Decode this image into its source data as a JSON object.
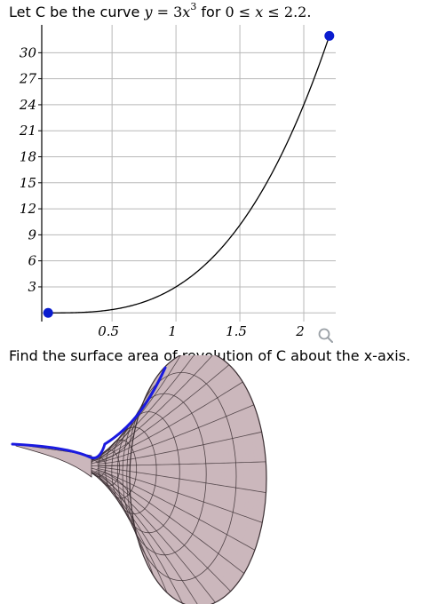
{
  "problem": {
    "intro": "Let C be the curve",
    "eq_y": "y",
    "eq_eq": "=",
    "eq_coef": "3",
    "eq_x": "x",
    "eq_pow": "3",
    "for_word": "for",
    "range_lo": "0",
    "range_x": "x",
    "range_hi": "2.2.",
    "le_symbol": "≤",
    "question": "Find the surface area of revolution of C about the x-axis."
  },
  "chart_data": {
    "type": "line",
    "function": "y = 3x^3",
    "x": [
      0,
      0.1,
      0.2,
      0.3,
      0.4,
      0.5,
      0.6,
      0.7,
      0.8,
      0.9,
      1.0,
      1.1,
      1.2,
      1.3,
      1.4,
      1.5,
      1.6,
      1.7,
      1.8,
      1.9,
      2.0,
      2.1,
      2.2
    ],
    "y": [
      0,
      0.003,
      0.024,
      0.081,
      0.192,
      0.375,
      0.648,
      1.029,
      1.536,
      2.187,
      3,
      3.993,
      5.184,
      6.591,
      8.232,
      10.125,
      12.288,
      14.739,
      17.496,
      20.577,
      24,
      27.783,
      31.944
    ],
    "endpoints": [
      {
        "x": 0,
        "y": 0
      },
      {
        "x": 2.2,
        "y": 31.944
      }
    ],
    "xlim": [
      -0.05,
      2.25
    ],
    "ylim": [
      -1,
      32.7
    ],
    "xticks": [
      0.5,
      1,
      1.5,
      2
    ],
    "xtick_labels": [
      "0.5",
      "1",
      "1.5",
      "2"
    ],
    "yticks": [
      3,
      6,
      9,
      12,
      15,
      18,
      21,
      24,
      27,
      30
    ],
    "ytick_labels": [
      "3",
      "6",
      "9",
      "12",
      "15",
      "18",
      "21",
      "24",
      "27",
      "30"
    ],
    "xgrid": [
      0.5,
      1,
      1.5,
      2
    ],
    "ygrid": [
      0,
      3,
      6,
      9,
      12,
      15,
      18,
      21,
      24,
      27,
      30
    ],
    "grid": true,
    "xlabel": "",
    "ylabel": "",
    "colors": {
      "curve": "#000000",
      "points": "#0a1ccf",
      "grid": "#b8b8b8"
    }
  },
  "surface": {
    "colors": {
      "fill": "#cbb7bc",
      "mesh": "#3b2f33",
      "profile": "#1a1ae0"
    }
  },
  "icons": {
    "zoom": "magnifier-icon"
  }
}
